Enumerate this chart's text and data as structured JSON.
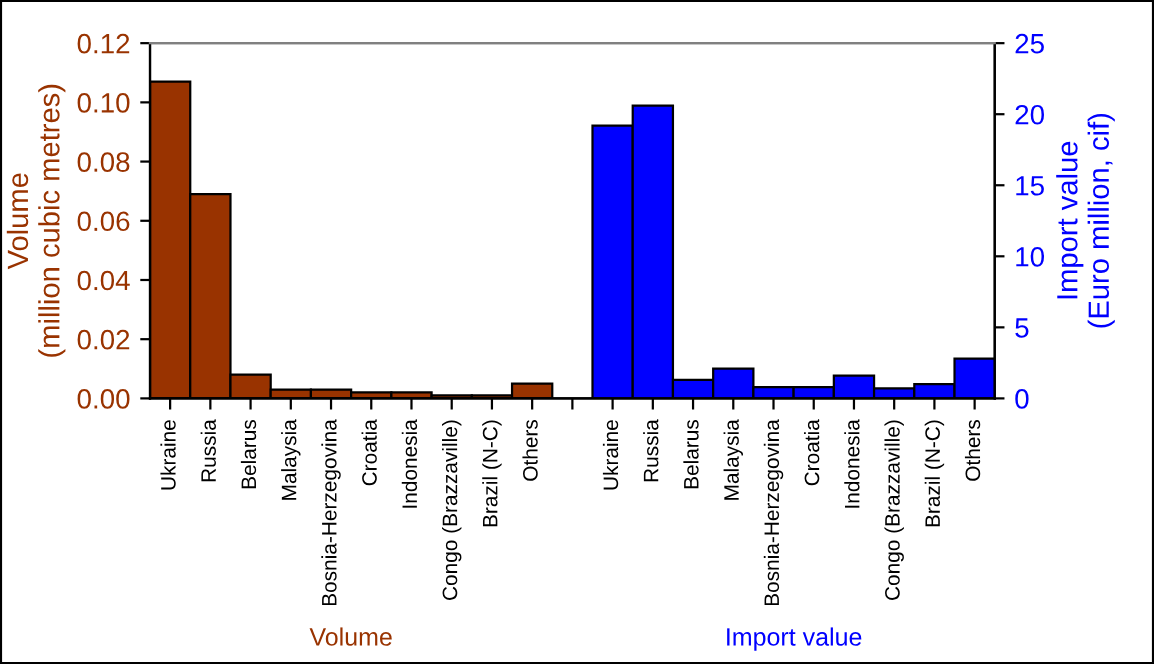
{
  "chart_data": {
    "type": "bar",
    "categories": [
      "Ukraine",
      "Russia",
      "Belarus",
      "Malaysia",
      "Bosnia-Herzegovina",
      "Croatia",
      "Indonesia",
      "Congo (Brazzaville)",
      "Brazil (N-C)",
      "Others",
      null,
      "Ukraine",
      "Russia",
      "Belarus",
      "Malaysia",
      "Bosnia-Herzegovina",
      "Croatia",
      "Indonesia",
      "Congo (Brazzaville)",
      "Brazil (N-C)",
      "Others"
    ],
    "series": [
      {
        "color": "#993300",
        "values": [
          0.107,
          0.069,
          0.008,
          0.003,
          0.003,
          0.002,
          0.002,
          0.001,
          0.001,
          0.005,
          null,
          null,
          null,
          null,
          null,
          null,
          null,
          null,
          null,
          null,
          null
        ]
      },
      {
        "color": "#0000ff",
        "axis": "y2",
        "values": [
          null,
          null,
          null,
          null,
          null,
          null,
          null,
          null,
          null,
          null,
          null,
          19.2,
          20.6,
          1.3,
          2.1,
          0.8,
          0.8,
          1.6,
          0.7,
          1.0,
          2.8
        ]
      }
    ],
    "ylabel": "Volume\n(million cubic metres)",
    "y2label": "Import value\n(Euro million, cif)",
    "ylim": [
      0,
      0.12
    ],
    "yticks": [
      {
        "value": 0,
        "label": "0.00"
      },
      {
        "value": 0.02,
        "label": "0.02"
      },
      {
        "value": 0.04,
        "label": "0.04"
      },
      {
        "value": 0.06,
        "label": "0.06"
      },
      {
        "value": 0.08,
        "label": "0.08"
      },
      {
        "value": 0.1,
        "label": "0.10"
      },
      {
        "value": 0.12,
        "label": "0.12"
      }
    ],
    "y2lim": [
      0,
      25
    ],
    "y2ticks": [
      0,
      5,
      10,
      15,
      20,
      25
    ],
    "annotations": [
      "Volume",
      "Import value"
    ],
    "grid": false,
    "legend": false
  }
}
